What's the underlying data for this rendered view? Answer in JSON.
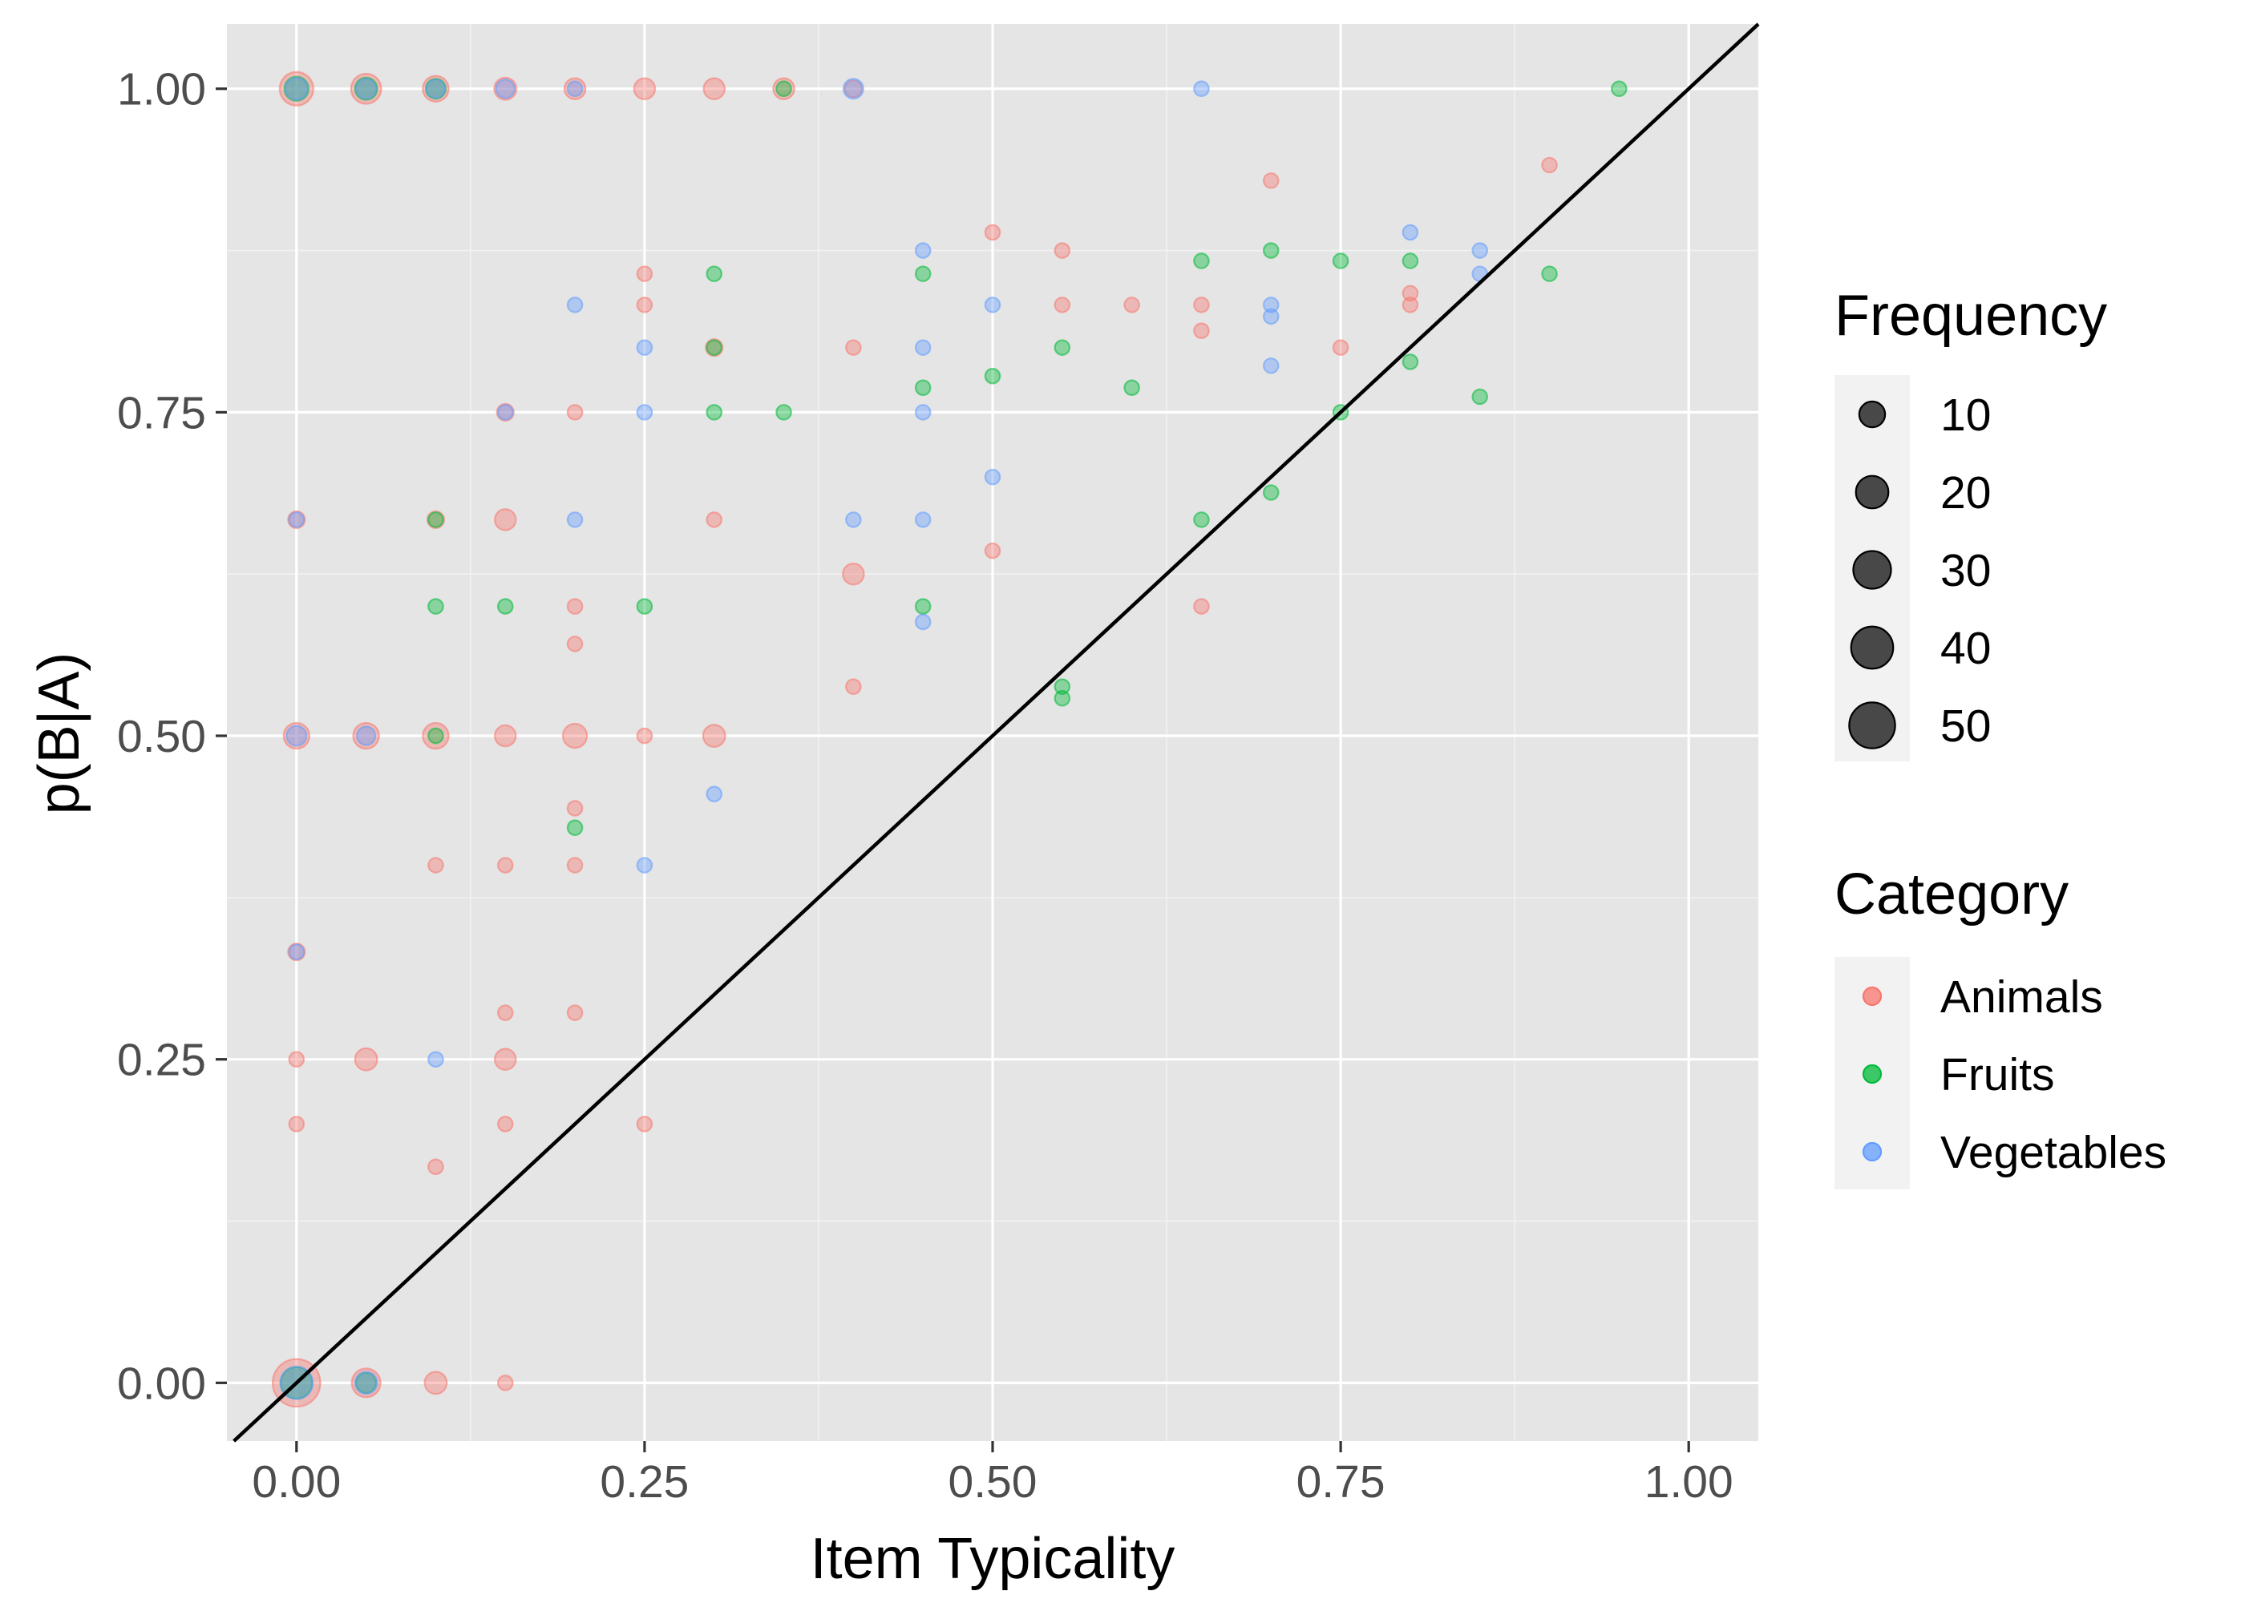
{
  "chart_data": {
    "type": "scatter",
    "title": "",
    "xlabel": "Item Typicality",
    "ylabel": "p(B|A)",
    "xlim": [
      -0.05,
      1.05
    ],
    "ylim": [
      -0.045,
      1.05
    ],
    "x_ticks": [
      {
        "value": 0,
        "label": "0.00"
      },
      {
        "value": 0.25,
        "label": "0.25"
      },
      {
        "value": 0.5,
        "label": "0.50"
      },
      {
        "value": 0.75,
        "label": "0.75"
      },
      {
        "value": 1,
        "label": "1.00"
      }
    ],
    "y_ticks": [
      {
        "value": 0,
        "label": "0.00"
      },
      {
        "value": 0.25,
        "label": "0.25"
      },
      {
        "value": 0.5,
        "label": "0.50"
      },
      {
        "value": 0.75,
        "label": "0.75"
      },
      {
        "value": 1,
        "label": "1.00"
      }
    ],
    "grid": true,
    "reference_line": {
      "type": "identity",
      "slope": 1,
      "intercept": 0,
      "color": "#000000"
    },
    "legend_position": "right",
    "size_legend": {
      "title": "Frequency",
      "entries": [
        {
          "value": 10,
          "label": "10"
        },
        {
          "value": 20,
          "label": "20"
        },
        {
          "value": 30,
          "label": "30"
        },
        {
          "value": 40,
          "label": "40"
        },
        {
          "value": 50,
          "label": "50"
        }
      ]
    },
    "color_legend": {
      "title": "Category"
    },
    "series": [
      {
        "name": "Animals",
        "color": "#F8766D",
        "points": [
          [
            0,
            1,
            22
          ],
          [
            0.05,
            1,
            16
          ],
          [
            0.1,
            1,
            10
          ],
          [
            0.15,
            1,
            6
          ],
          [
            0.2,
            1,
            5
          ],
          [
            0.25,
            1,
            5
          ],
          [
            0.3,
            1,
            5
          ],
          [
            0.35,
            1,
            5
          ],
          [
            0.4,
            1,
            2
          ],
          [
            0.5,
            0.889,
            1
          ],
          [
            0.55,
            0.875,
            1
          ],
          [
            0.7,
            0.929,
            1
          ],
          [
            0.9,
            0.941,
            1
          ],
          [
            0.25,
            0.857,
            1
          ],
          [
            0.25,
            0.833,
            1
          ],
          [
            0.55,
            0.833,
            1
          ],
          [
            0.6,
            0.833,
            1
          ],
          [
            0.65,
            0.833,
            1
          ],
          [
            0.8,
            0.833,
            1
          ],
          [
            0.8,
            0.842,
            1
          ],
          [
            0.65,
            0.813,
            1
          ],
          [
            0.3,
            0.8,
            2
          ],
          [
            0.4,
            0.8,
            1
          ],
          [
            0.75,
            0.8,
            1
          ],
          [
            0.15,
            0.75,
            2
          ],
          [
            0.2,
            0.75,
            1
          ],
          [
            0.0,
            0.667,
            2
          ],
          [
            0.1,
            0.667,
            2
          ],
          [
            0.15,
            0.667,
            5
          ],
          [
            0.3,
            0.667,
            1
          ],
          [
            0.5,
            0.643,
            1
          ],
          [
            0.4,
            0.625,
            5
          ],
          [
            0.2,
            0.6,
            1
          ],
          [
            0.65,
            0.6,
            1
          ],
          [
            0.2,
            0.571,
            1
          ],
          [
            0.4,
            0.538,
            1
          ],
          [
            0,
            0.5,
            10
          ],
          [
            0.05,
            0.5,
            10
          ],
          [
            0.1,
            0.5,
            10
          ],
          [
            0.15,
            0.5,
            5
          ],
          [
            0.2,
            0.5,
            8
          ],
          [
            0.25,
            0.5,
            1
          ],
          [
            0.3,
            0.5,
            6
          ],
          [
            0.2,
            0.444,
            1
          ],
          [
            0.1,
            0.4,
            1
          ],
          [
            0.15,
            0.4,
            1
          ],
          [
            0.2,
            0.4,
            1
          ],
          [
            0,
            0.333,
            2
          ],
          [
            0.15,
            0.286,
            1
          ],
          [
            0.2,
            0.286,
            1
          ],
          [
            0,
            0.25,
            1
          ],
          [
            0.05,
            0.25,
            6
          ],
          [
            0.15,
            0.25,
            5
          ],
          [
            0,
            0.2,
            1
          ],
          [
            0.15,
            0.2,
            1
          ],
          [
            0.25,
            0.2,
            1
          ],
          [
            0.1,
            0.167,
            1
          ],
          [
            0,
            0,
            55
          ],
          [
            0.05,
            0,
            14
          ],
          [
            0.1,
            0,
            6
          ],
          [
            0.15,
            0,
            1
          ]
        ]
      },
      {
        "name": "Fruits",
        "color": "#00BA38",
        "points": [
          [
            0,
            1,
            8
          ],
          [
            0.05,
            1,
            6
          ],
          [
            0.1,
            1,
            4
          ],
          [
            0.35,
            1,
            1
          ],
          [
            0.95,
            1,
            1
          ],
          [
            0.7,
            0.875,
            1
          ],
          [
            0.65,
            0.867,
            1
          ],
          [
            0.75,
            0.867,
            1
          ],
          [
            0.8,
            0.867,
            1
          ],
          [
            0.3,
            0.857,
            1
          ],
          [
            0.45,
            0.857,
            1
          ],
          [
            0.9,
            0.857,
            1
          ],
          [
            0.55,
            0.8,
            1
          ],
          [
            0.8,
            0.789,
            1
          ],
          [
            0.5,
            0.778,
            1
          ],
          [
            0.45,
            0.769,
            1
          ],
          [
            0.6,
            0.769,
            1
          ],
          [
            0.85,
            0.762,
            1
          ],
          [
            0.3,
            0.75,
            1
          ],
          [
            0.35,
            0.75,
            1
          ],
          [
            0.75,
            0.75,
            1
          ],
          [
            0.1,
            0.667,
            1
          ],
          [
            0.3,
            0.8,
            1
          ],
          [
            0.7,
            0.688,
            1
          ],
          [
            0.65,
            0.667,
            1
          ],
          [
            0.1,
            0.6,
            1
          ],
          [
            0.15,
            0.6,
            1
          ],
          [
            0.25,
            0.6,
            1
          ],
          [
            0.45,
            0.6,
            1
          ],
          [
            0.55,
            0.538,
            1
          ],
          [
            0.55,
            0.529,
            1
          ],
          [
            0.1,
            0.5,
            1
          ],
          [
            0.2,
            0.429,
            1
          ],
          [
            0,
            0,
            18
          ],
          [
            0.05,
            0,
            4
          ]
        ]
      },
      {
        "name": "Vegetables",
        "color": "#619CFF",
        "points": [
          [
            0,
            1,
            6
          ],
          [
            0.05,
            1,
            4
          ],
          [
            0.1,
            1,
            3
          ],
          [
            0.15,
            1,
            3
          ],
          [
            0.2,
            1,
            1
          ],
          [
            0.4,
            1,
            4
          ],
          [
            0.65,
            1,
            1
          ],
          [
            0.8,
            0.889,
            1
          ],
          [
            0.45,
            0.875,
            1
          ],
          [
            0.85,
            0.875,
            1
          ],
          [
            0.85,
            0.857,
            1
          ],
          [
            0.2,
            0.833,
            1
          ],
          [
            0.5,
            0.833,
            1
          ],
          [
            0.7,
            0.833,
            1
          ],
          [
            0.7,
            0.824,
            1
          ],
          [
            0.25,
            0.8,
            1
          ],
          [
            0.45,
            0.8,
            1
          ],
          [
            0.7,
            0.786,
            1
          ],
          [
            0.25,
            0.75,
            1
          ],
          [
            0.45,
            0.75,
            1
          ],
          [
            0.15,
            0.75,
            1
          ],
          [
            0.5,
            0.7,
            1
          ],
          [
            0,
            0.667,
            1
          ],
          [
            0.2,
            0.667,
            1
          ],
          [
            0.4,
            0.667,
            1
          ],
          [
            0.45,
            0.667,
            1
          ],
          [
            0.45,
            0.588,
            1
          ],
          [
            0,
            0.5,
            4
          ],
          [
            0.05,
            0.5,
            3
          ],
          [
            0.3,
            0.455,
            1
          ],
          [
            0.25,
            0.4,
            1
          ],
          [
            0,
            0.333,
            1
          ],
          [
            0.1,
            0.25,
            1
          ],
          [
            0,
            0,
            20
          ],
          [
            0.05,
            0,
            6
          ]
        ]
      }
    ]
  }
}
